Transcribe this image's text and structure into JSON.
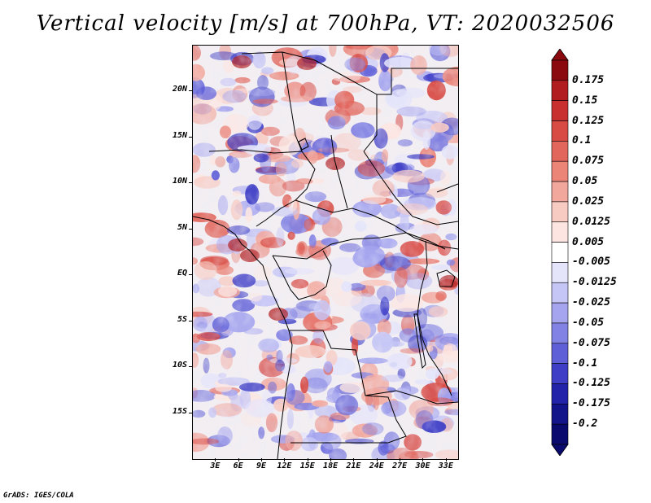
{
  "title": "Vertical velocity [m/s] at 700hPa, VT: 2020032506",
  "credit": "GrADS: IGES/COLA",
  "latitude_labels": [
    "20N",
    "15N",
    "10N",
    "5N",
    "EQ",
    "5S",
    "10S",
    "15S"
  ],
  "latitude_values": [
    20,
    15,
    10,
    5,
    0,
    -5,
    -10,
    -15
  ],
  "longitude_labels": [
    "3E",
    "6E",
    "9E",
    "12E",
    "15E",
    "18E",
    "21E",
    "24E",
    "27E",
    "30E",
    "33E"
  ],
  "longitude_values": [
    3,
    6,
    9,
    12,
    15,
    18,
    21,
    24,
    27,
    30,
    33
  ],
  "map_extent": {
    "lon": [
      0,
      34.5
    ],
    "lat": [
      -20,
      25
    ]
  },
  "colorbar": {
    "labels": [
      "0.175",
      "0.15",
      "0.125",
      "0.1",
      "0.075",
      "0.05",
      "0.025",
      "0.0125",
      "0.005",
      "-0.005",
      "-0.0125",
      "-0.025",
      "-0.05",
      "-0.075",
      "-0.1",
      "-0.125",
      "-0.175",
      "-0.2"
    ],
    "colors": [
      "#8b0a0f",
      "#b01c20",
      "#c83030",
      "#d84a44",
      "#e2665c",
      "#eb8578",
      "#f2a79c",
      "#f8cbc2",
      "#fde6e1",
      "#ffffff",
      "#e4e4fb",
      "#c6c6f6",
      "#a5a5ef",
      "#8282e4",
      "#5f5fd8",
      "#3e3ec6",
      "#2323aa",
      "#14148a",
      "#0a0a6e"
    ]
  }
}
